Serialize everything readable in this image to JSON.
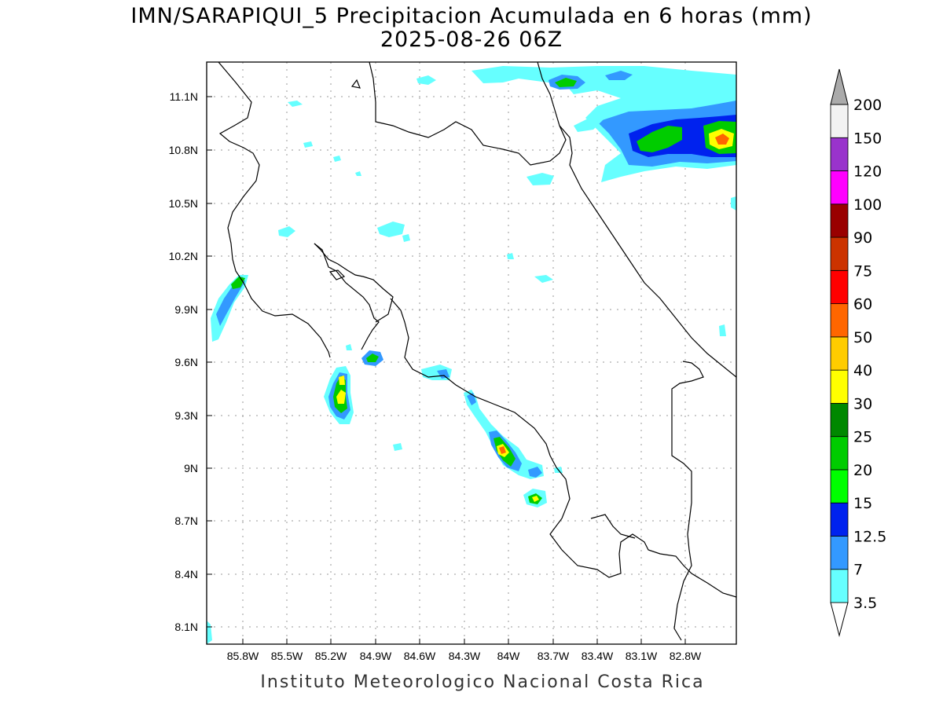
{
  "title": {
    "line1": "IMN/SARAPIQUI_5 Precipitacion Acumulada en 6 horas (mm)",
    "line2": "2025-08-26 06Z"
  },
  "footer": "Instituto Meteorologico Nacional Costa Rica",
  "axes": {
    "lat_labels": [
      "11.1N",
      "10.8N",
      "10.5N",
      "10.2N",
      "9.9N",
      "9.6N",
      "9.3N",
      "9N",
      "8.7N",
      "8.4N",
      "8.1N"
    ],
    "lon_labels": [
      "85.8W",
      "85.5W",
      "85.2W",
      "84.9W",
      "84.6W",
      "84.3W",
      "84W",
      "83.7W",
      "83.4W",
      "83.1W",
      "82.8W"
    ]
  },
  "colorbar": {
    "labels": [
      "3.5",
      "7",
      "12.5",
      "15",
      "20",
      "25",
      "30",
      "40",
      "50",
      "60",
      "75",
      "90",
      "100",
      "120",
      "150",
      "200"
    ],
    "colors": [
      "#66ffff",
      "#3399ff",
      "#0022ee",
      "#00ff00",
      "#00cc00",
      "#008800",
      "#ffff00",
      "#ffcc00",
      "#ff6600",
      "#ff0000",
      "#cc3300",
      "#990000",
      "#ff00ff",
      "#9933cc",
      "#f2f2f2",
      "#aaaaaa"
    ]
  }
}
